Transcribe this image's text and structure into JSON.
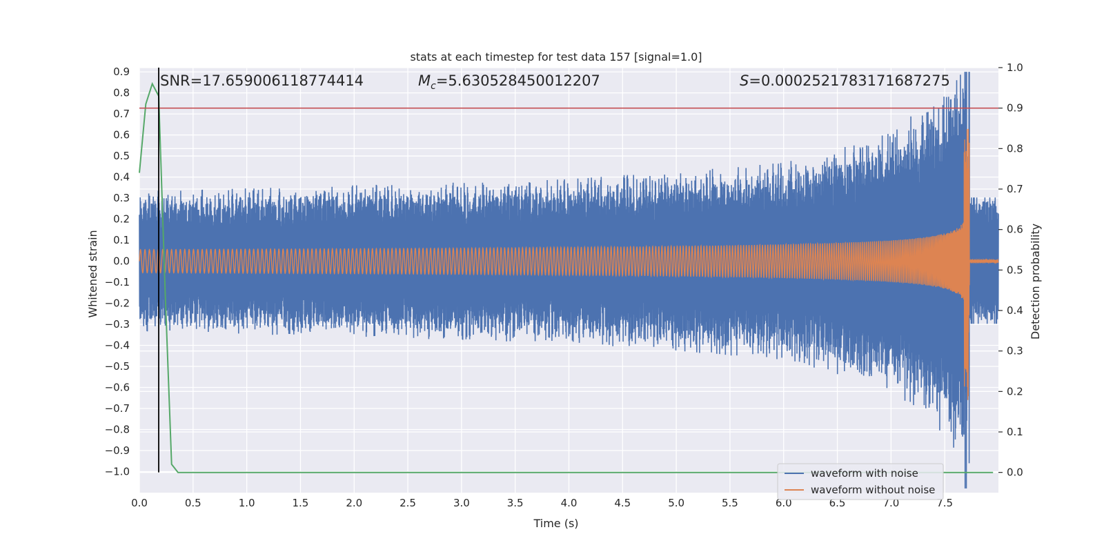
{
  "chart_data": {
    "type": "line",
    "title": "stats at each timestep for test data 157 [signal=1.0]",
    "xlabel": "Time (s)",
    "ylabel": "Whitened strain",
    "ylabel_right": "Detection probability",
    "xlim": [
      0.0,
      8.0
    ],
    "ylim": [
      -1.1,
      0.92
    ],
    "ylim_right": [
      -0.05,
      1.0
    ],
    "x_ticks": [
      0.0,
      0.5,
      1.0,
      1.5,
      2.0,
      2.5,
      3.0,
      3.5,
      4.0,
      4.5,
      5.0,
      5.5,
      6.0,
      6.5,
      7.0,
      7.5
    ],
    "x_tick_labels": [
      "0.0",
      "0.5",
      "1.0",
      "1.5",
      "2.0",
      "2.5",
      "3.0",
      "3.5",
      "4.0",
      "4.5",
      "5.0",
      "5.5",
      "6.0",
      "6.5",
      "7.0",
      "7.5"
    ],
    "y_ticks": [
      0.9,
      0.8,
      0.7,
      0.6,
      0.5,
      0.4,
      0.3,
      0.2,
      0.1,
      0.0,
      -0.1,
      -0.2,
      -0.3,
      -0.4,
      -0.5,
      -0.6,
      -0.7,
      -0.8,
      -0.9,
      -1.0
    ],
    "y_tick_labels": [
      "0.9",
      "0.8",
      "0.7",
      "0.6",
      "0.5",
      "0.4",
      "0.3",
      "0.2",
      "0.1",
      "0.0",
      "−0.1",
      "−0.2",
      "−0.3",
      "−0.4",
      "−0.5",
      "−0.6",
      "−0.7",
      "−0.8",
      "−0.9",
      "−1.0"
    ],
    "y2_ticks": [
      1.0,
      0.9,
      0.8,
      0.7,
      0.6,
      0.5,
      0.4,
      0.3,
      0.2,
      0.1,
      0.0
    ],
    "y2_tick_labels": [
      "1.0",
      "0.9",
      "0.8",
      "0.7",
      "0.6",
      "0.5",
      "0.4",
      "0.3",
      "0.2",
      "0.1",
      "0.0"
    ],
    "annotations": {
      "snr": "SNR=17.659006118774414",
      "mc_symbol": "M",
      "mc_sub": "c",
      "mc_value": "=5.630528450012207",
      "s_symbol": "S",
      "s_value": "=0.0002521783171687275"
    },
    "series": [
      {
        "name": "waveform with noise",
        "color": "#4c72b0",
        "axis": "left",
        "noise_amplitude_envelope": [
          [
            0.0,
            0.3
          ],
          [
            4.0,
            0.35
          ],
          [
            6.0,
            0.42
          ],
          [
            7.0,
            0.55
          ],
          [
            7.5,
            0.75
          ],
          [
            7.73,
            0.95
          ]
        ],
        "post_merger_amplitude": 0.3
      },
      {
        "name": "waveform without noise",
        "color": "#dd8452",
        "axis": "left",
        "chirp": {
          "t_merger": 7.73,
          "start_freq_hz": 24,
          "start_amplitude": 0.055,
          "peak_amplitude": 0.92
        }
      },
      {
        "name": "detection probability",
        "color": "#55a868",
        "axis": "right",
        "x": [
          0.0,
          0.06,
          0.12,
          0.18,
          0.24,
          0.3,
          0.36,
          0.42,
          7.95
        ],
        "values": [
          0.74,
          0.91,
          0.96,
          0.93,
          0.45,
          0.02,
          0.0,
          0.0,
          0.0
        ]
      }
    ],
    "hlines": [
      {
        "axis": "right",
        "y": 0.9,
        "color": "#c44e52"
      }
    ],
    "vlines": [
      {
        "x": 0.18,
        "color": "#000000",
        "y_range_right": [
          0.0,
          1.0
        ]
      }
    ],
    "legend": {
      "position": "lower-right",
      "entries": [
        "waveform with noise",
        "waveform without noise"
      ],
      "colors": [
        "#4c72b0",
        "#dd8452"
      ]
    },
    "grid": true,
    "background": "#eaeaf2"
  }
}
